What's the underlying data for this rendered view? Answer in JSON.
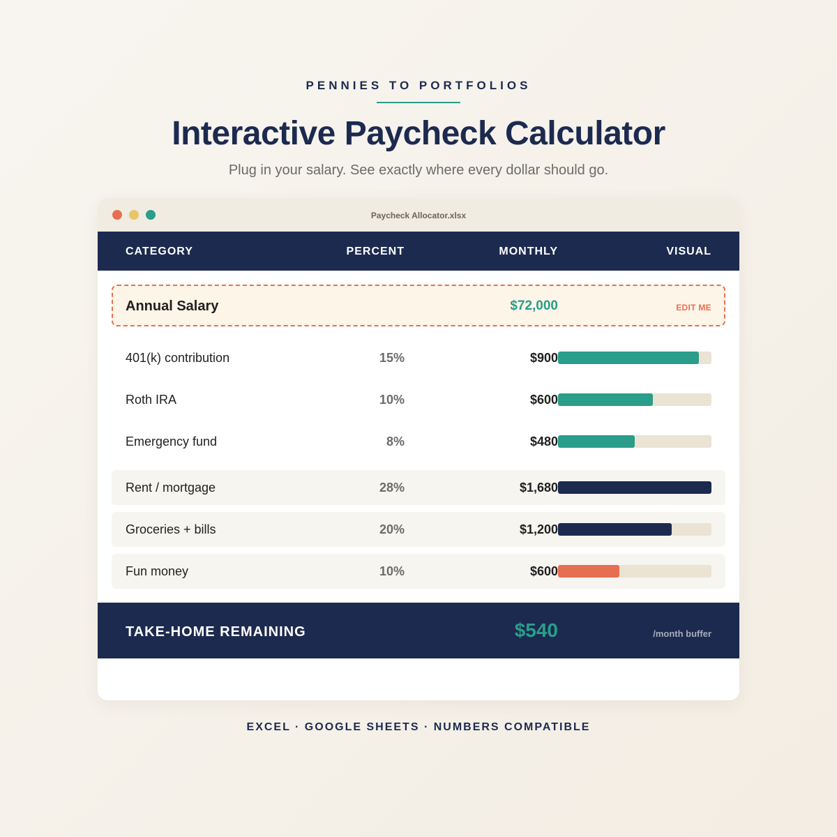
{
  "header": {
    "brand": "PENNIES TO PORTFOLIOS",
    "title": "Interactive Paycheck Calculator",
    "subtitle": "Plug in your salary. See exactly where every dollar should go."
  },
  "window": {
    "filename": "Paycheck Allocator.xlsx",
    "controls": [
      "close",
      "minimize",
      "maximize"
    ]
  },
  "table": {
    "columns": {
      "category": "CATEGORY",
      "percent": "PERCENT",
      "monthly": "MONTHLY",
      "visual": "VISUAL"
    },
    "salary": {
      "label": "Annual Salary",
      "value": "$72,000",
      "edit_label": "EDIT ME"
    },
    "rows": [
      {
        "category": "401(k) contribution",
        "percent": "15%",
        "monthly": "$900",
        "bar_pct": 92,
        "color": "teal"
      },
      {
        "category": "Roth IRA",
        "percent": "10%",
        "monthly": "$600",
        "bar_pct": 62,
        "color": "teal"
      },
      {
        "category": "Emergency fund",
        "percent": "8%",
        "monthly": "$480",
        "bar_pct": 50,
        "color": "teal"
      },
      {
        "category": "Rent / mortgage",
        "percent": "28%",
        "monthly": "$1,680",
        "bar_pct": 100,
        "color": "navy"
      },
      {
        "category": "Groceries + bills",
        "percent": "20%",
        "monthly": "$1,200",
        "bar_pct": 74,
        "color": "navy"
      },
      {
        "category": "Fun money",
        "percent": "10%",
        "monthly": "$600",
        "bar_pct": 40,
        "color": "coral"
      }
    ],
    "total": {
      "label": "TAKE-HOME REMAINING",
      "value": "$540",
      "note": "/month buffer"
    }
  },
  "footer": {
    "compat": "EXCEL · GOOGLE SHEETS · NUMBERS COMPATIBLE"
  },
  "colors": {
    "navy": "#1c2a4f",
    "teal": "#2a9d8b",
    "coral": "#e76f51",
    "yellow": "#e9c46a",
    "bar_track": "#ebe3d3"
  }
}
